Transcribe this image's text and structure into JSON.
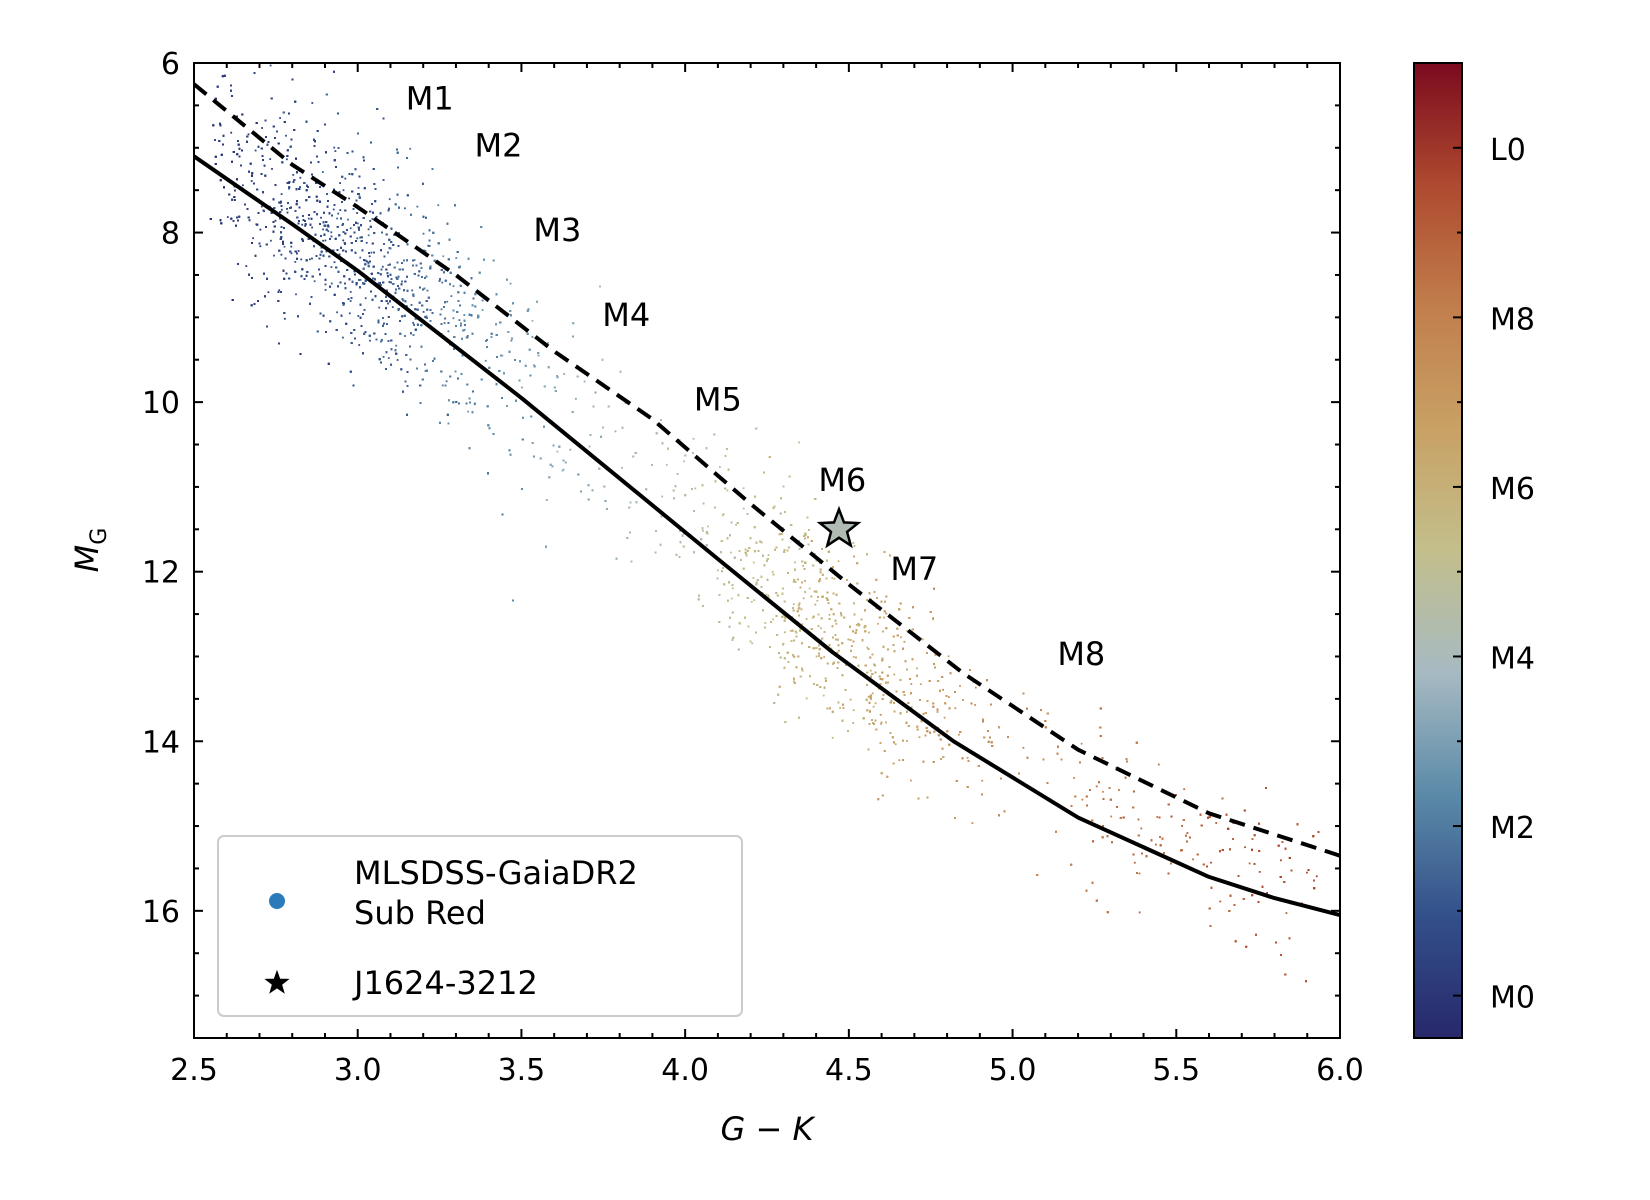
{
  "chart_data": {
    "type": "scatter",
    "xlabel": "G − K",
    "ylabel": "M",
    "ylabel_sub": "G",
    "xlim": [
      2.5,
      6.0
    ],
    "ylim": [
      17.5,
      6.0
    ],
    "y_inverted": true,
    "grid": false,
    "x_ticks": [
      2.5,
      3.0,
      3.5,
      4.0,
      4.5,
      5.0,
      5.5,
      6.0
    ],
    "x_tick_labels": [
      "2.5",
      "3.0",
      "3.5",
      "4.0",
      "4.5",
      "5.0",
      "5.5",
      "6.0"
    ],
    "y_ticks": [
      6,
      8,
      10,
      12,
      14,
      16
    ],
    "y_tick_labels": [
      "6",
      "8",
      "10",
      "12",
      "14",
      "16"
    ],
    "colorbar": {
      "label_values": [
        0,
        2,
        4,
        6,
        8,
        10
      ],
      "labels": [
        "M0",
        "M2",
        "M4",
        "M6",
        "M8",
        "L0"
      ],
      "range": [
        -0.5,
        11.0
      ],
      "colormap": [
        "#27286b",
        "#33508a",
        "#5b8aa8",
        "#a7bac2",
        "#c3bf8b",
        "#c8a165",
        "#c17e4c",
        "#ae4a2f",
        "#7b0a1f"
      ]
    },
    "series": [
      {
        "name": "solid-sequence-line",
        "style": "solid",
        "color": "#000000",
        "x": [
          2.5,
          2.8,
          3.0,
          3.2,
          3.5,
          3.8,
          4.1,
          4.45,
          4.82,
          5.2,
          5.6,
          5.8,
          6.0
        ],
        "y": [
          7.1,
          7.9,
          8.45,
          9.05,
          9.95,
          10.9,
          11.85,
          12.95,
          14.0,
          14.9,
          15.6,
          15.85,
          16.05
        ]
      },
      {
        "name": "dashed-sequence-line",
        "style": "dashed",
        "color": "#000000",
        "x": [
          2.5,
          2.8,
          3.0,
          3.3,
          3.6,
          3.9,
          4.2,
          4.5,
          4.85,
          5.2,
          5.6,
          6.0
        ],
        "y": [
          6.25,
          7.2,
          7.7,
          8.5,
          9.4,
          10.2,
          11.2,
          12.15,
          13.2,
          14.1,
          14.85,
          15.35
        ]
      }
    ],
    "annotations": [
      {
        "text": "M1",
        "x": 3.22,
        "y": 6.55
      },
      {
        "text": "M2",
        "x": 3.43,
        "y": 7.1
      },
      {
        "text": "M3",
        "x": 3.61,
        "y": 8.1
      },
      {
        "text": "M4",
        "x": 3.82,
        "y": 9.1
      },
      {
        "text": "M5",
        "x": 4.1,
        "y": 10.1
      },
      {
        "text": "M6",
        "x": 4.48,
        "y": 11.05
      },
      {
        "text": "M7",
        "x": 4.7,
        "y": 12.1
      },
      {
        "text": "M8",
        "x": 5.21,
        "y": 13.1
      }
    ],
    "highlight": {
      "name": "J1624-3212",
      "x": 4.47,
      "y": 11.5,
      "marker": "star",
      "spectral_value": 4.2
    },
    "scatter_model": {
      "label": "MLSDSS-GaiaDR2 Sub Red",
      "n_points": 11000,
      "spectral_type_of_x": {
        "x": [
          2.7,
          3.0,
          3.5,
          4.0,
          4.5,
          5.0,
          5.5,
          6.0
        ],
        "t": [
          0.4,
          1.0,
          2.8,
          4.6,
          6.1,
          7.6,
          8.8,
          9.6
        ]
      },
      "center_offset_from_solid_line": 0.25,
      "vertical_spread_mag": 0.55
    },
    "legend": {
      "placement": "lower-left",
      "entries": [
        {
          "label_lines": [
            "MLSDSS-GaiaDR2",
            "Sub Red"
          ],
          "marker": "dot",
          "color": "#2b7bba"
        },
        {
          "label_lines": [
            "J1624-3212"
          ],
          "marker": "star",
          "color": "#000000"
        }
      ]
    }
  }
}
